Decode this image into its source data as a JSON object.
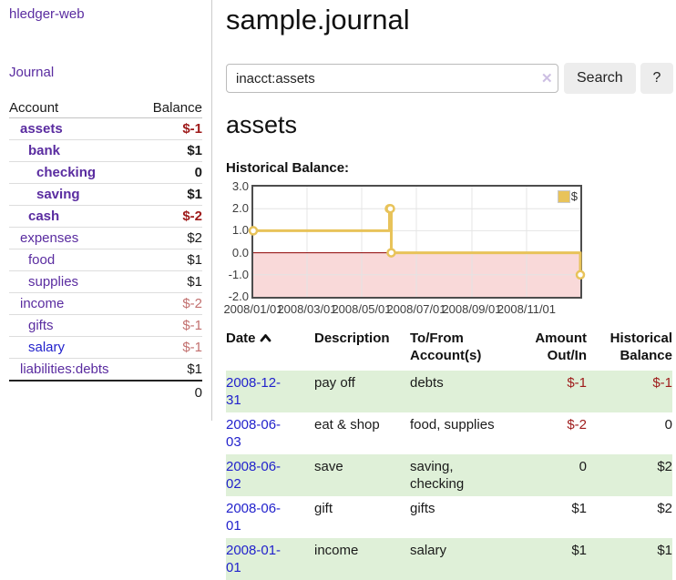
{
  "app": {
    "brand": "hledger-web",
    "nav_journal": "Journal"
  },
  "header": {
    "title": "sample.journal"
  },
  "search": {
    "value": "inacct:assets",
    "clear_icon": "✕",
    "button_label": "Search",
    "help_label": "?"
  },
  "main": {
    "account_title": "assets",
    "chart_label": "Historical Balance:"
  },
  "sidebar": {
    "accounts_header": {
      "account": "Account",
      "balance": "Balance"
    },
    "accounts": [
      {
        "name": "assets",
        "balance": "$-1",
        "indent": 1,
        "bold": true,
        "neg": "strong"
      },
      {
        "name": "bank",
        "balance": "$1",
        "indent": 2,
        "bold": true
      },
      {
        "name": "checking",
        "balance": "0",
        "indent": 3,
        "bold": true
      },
      {
        "name": "saving",
        "balance": "$1",
        "indent": 3,
        "bold": true
      },
      {
        "name": "cash",
        "balance": "$-2",
        "indent": 2,
        "bold": true,
        "neg": "strong"
      },
      {
        "name": "expenses",
        "balance": "$2",
        "indent": 1
      },
      {
        "name": "food",
        "balance": "$1",
        "indent": 2
      },
      {
        "name": "supplies",
        "balance": "$1",
        "indent": 2
      },
      {
        "name": "income",
        "balance": "$-2",
        "indent": 1,
        "neg": "muted"
      },
      {
        "name": "gifts",
        "balance": "$-1",
        "indent": 2,
        "neg": "muted"
      },
      {
        "name": "salary",
        "balance": "$-1",
        "indent": 2,
        "neg": "muted",
        "link_style": "unvisited"
      },
      {
        "name": "liabilities:debts",
        "balance": "$1",
        "indent": 1
      }
    ],
    "total": "0"
  },
  "chart_data": {
    "type": "line",
    "step": true,
    "series": [
      {
        "name": "$",
        "points": [
          [
            "2008/01/01",
            1
          ],
          [
            "2008/06/01",
            2
          ],
          [
            "2008/06/02",
            2
          ],
          [
            "2008/06/03",
            0
          ],
          [
            "2008/12/31",
            -1
          ]
        ]
      }
    ],
    "x_range": [
      "2008/01/01",
      "2008/12/31"
    ],
    "ylim": [
      -2,
      3
    ],
    "yticks": [
      3,
      2,
      1,
      0,
      -1,
      -2
    ],
    "ytick_labels": [
      "3.0",
      "2.0",
      "1.0",
      "0.0",
      "-1.0",
      "-2.0"
    ],
    "xticks": [
      "2008/01/01",
      "2008/03/01",
      "2008/05/01",
      "2008/07/01",
      "2008/09/01",
      "2008/11/01"
    ],
    "legend": {
      "label": "$",
      "position": "top-right"
    },
    "grid": true,
    "negative_region_below": 0,
    "colors": {
      "line": "#e8c35a",
      "marker_fill": "#ffffff",
      "negative_region": "#f9d9d9",
      "zero_line": "#8b0000",
      "grid": "#e4e4e4",
      "border": "#4d4d4d"
    }
  },
  "register": {
    "headers": {
      "date": "Date",
      "sort": "asc",
      "description": "Description",
      "accounts": "To/From Account(s)",
      "amount": "Amount Out/In",
      "balance": "Historical Balance"
    },
    "rows": [
      {
        "date": "2008-12-31",
        "description": "pay off",
        "accounts": "debts",
        "amount": "$-1",
        "balance": "$-1",
        "amount_negative": true,
        "balance_negative": true
      },
      {
        "date": "2008-06-03",
        "description": "eat & shop",
        "accounts": "food, supplies",
        "amount": "$-2",
        "balance": "0",
        "amount_negative": true
      },
      {
        "date": "2008-06-02",
        "description": "save",
        "accounts": "saving, checking",
        "amount": "0",
        "balance": "$2"
      },
      {
        "date": "2008-06-01",
        "description": "gift",
        "accounts": "gifts",
        "amount": "$1",
        "balance": "$2"
      },
      {
        "date": "2008-01-01",
        "description": "income",
        "accounts": "salary",
        "amount": "$1",
        "balance": "$1"
      }
    ]
  }
}
